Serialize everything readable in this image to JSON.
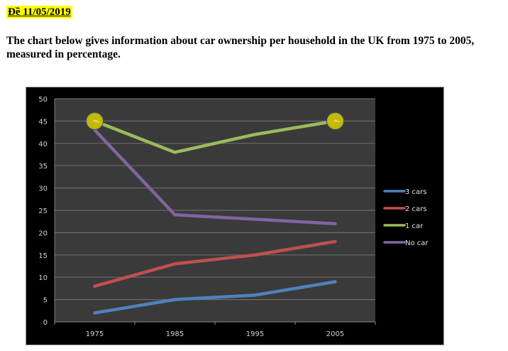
{
  "heading": "Đề 11/05/2019",
  "description": "The chart below gives information about car ownership per household in the UK from 1975 to 2005, measured in percentage.",
  "chart_data": {
    "type": "line",
    "title": "",
    "xlabel": "",
    "ylabel": "",
    "categories": [
      "1975",
      "1985",
      "1995",
      "2005"
    ],
    "ylim": [
      0,
      50
    ],
    "yticks": [
      "0",
      "5",
      "10",
      "15",
      "20",
      "25",
      "30",
      "35",
      "40",
      "45",
      "50"
    ],
    "grid": true,
    "legend_position": "right",
    "series": [
      {
        "name": "3 cars",
        "color": "#4f81bd",
        "values": [
          2,
          5,
          6,
          9
        ]
      },
      {
        "name": "2 cars",
        "color": "#c0504d",
        "values": [
          8,
          13,
          15,
          18
        ]
      },
      {
        "name": "1 car",
        "color": "#9bbb59",
        "values": [
          45,
          38,
          42,
          45
        ]
      },
      {
        "name": "No car",
        "color": "#8064a2",
        "values": [
          43,
          24,
          23,
          22
        ]
      }
    ],
    "highlights": [
      {
        "series": "1 car",
        "category": "1975",
        "value": 45,
        "color": "#c8c000"
      },
      {
        "series": "1 car",
        "category": "2005",
        "value": 45,
        "color": "#c8c000"
      }
    ]
  }
}
